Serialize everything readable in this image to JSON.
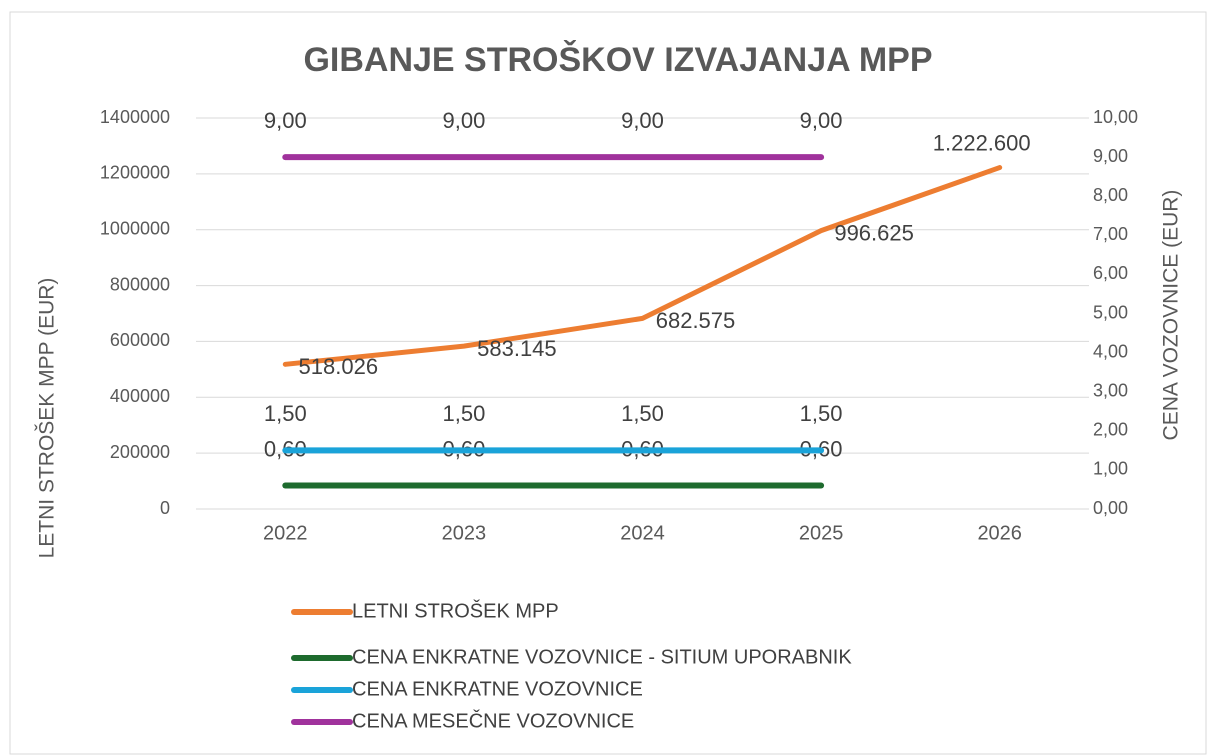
{
  "chart_data": {
    "type": "line",
    "title": "GIBANJE STROŠKOV IZVAJANJA MPP",
    "y_label": "LETNI STROŠEK MPP (EUR)",
    "y2_label": "CENA VOZOVNICE (EUR)",
    "categories": [
      "2022",
      "2023",
      "2024",
      "2025",
      "2026"
    ],
    "ylim": [
      0,
      1400000
    ],
    "yticks": [
      0,
      200000,
      400000,
      600000,
      800000,
      1000000,
      1200000,
      1400000
    ],
    "y2lim": [
      0,
      10
    ],
    "y2ticks": [
      {
        "value": 0,
        "label": "0,00"
      },
      {
        "value": 1,
        "label": "1,00"
      },
      {
        "value": 2,
        "label": "2,00"
      },
      {
        "value": 3,
        "label": "3,00"
      },
      {
        "value": 4,
        "label": "4,00"
      },
      {
        "value": 5,
        "label": "5,00"
      },
      {
        "value": 6,
        "label": "6,00"
      },
      {
        "value": 7,
        "label": "7,00"
      },
      {
        "value": 8,
        "label": "8,00"
      },
      {
        "value": 9,
        "label": "9,00"
      },
      {
        "value": 10,
        "label": "10,00"
      }
    ],
    "grid": true,
    "legend": "bottom",
    "series": [
      {
        "name": "LETNI STROŠEK MPP",
        "color": "#ed7d31",
        "values": [
          518026,
          583145,
          682575,
          996625,
          1222600
        ],
        "value_labels": [
          "518.026",
          "583.145",
          "682.575",
          "996.625",
          "1.222.600"
        ]
      },
      {
        "name": "CENA ENKRATNE VOZOVNICE - SITIUM UPORABNIK",
        "color": "#1e6b2e",
        "axis": "y2",
        "values": [
          0.6,
          0.6,
          0.6,
          0.6,
          null
        ],
        "value_labels": [
          "0,60",
          "0,60",
          "0,60",
          "0,60",
          null
        ]
      },
      {
        "name": "CENA ENKRATNE VOZOVNICE",
        "color": "#1aa3d9",
        "axis": "y2",
        "values": [
          1.5,
          1.5,
          1.5,
          1.5,
          null
        ],
        "value_labels": [
          "1,50",
          "1,50",
          "1,50",
          "1,50",
          null
        ]
      },
      {
        "name": "CENA MESEČNE VOZOVNICE",
        "color": "#a0329c",
        "axis": "y2",
        "values": [
          9,
          9,
          9,
          9,
          null
        ],
        "value_labels": [
          "9,00",
          "9,00",
          "9,00",
          "9,00",
          null
        ]
      }
    ]
  }
}
